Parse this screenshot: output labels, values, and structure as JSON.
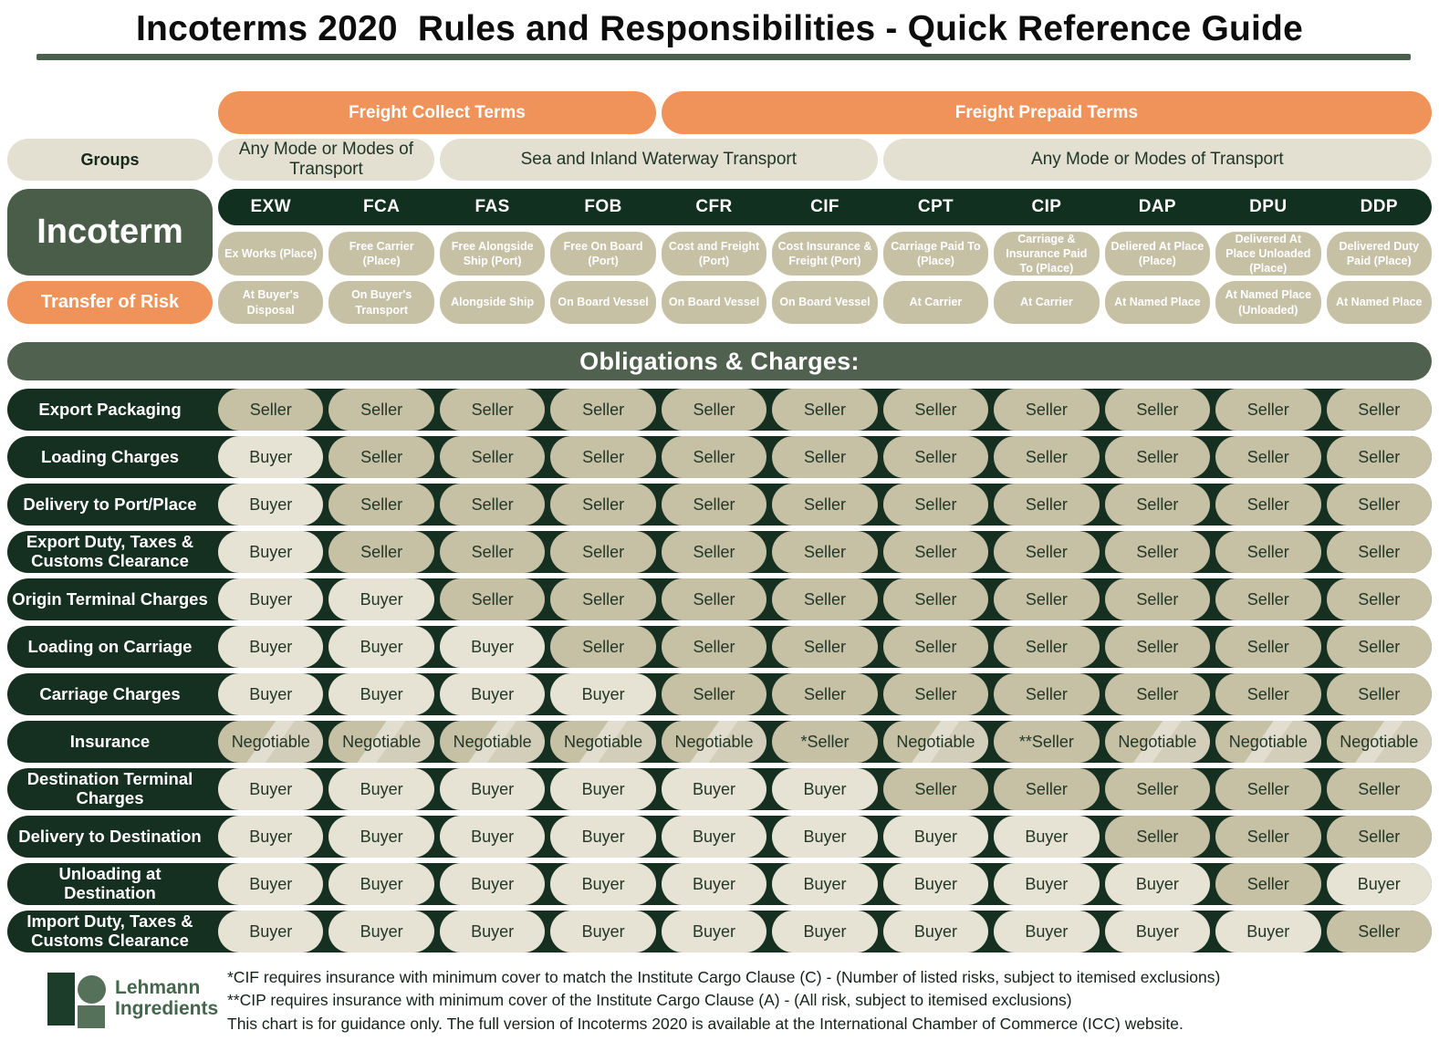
{
  "title": "Incoterms 2020  Rules and Responsibilities - Quick Reference Guide",
  "header": {
    "freight_collect": "Freight Collect Terms",
    "freight_prepaid": "Freight Prepaid Terms",
    "groups_label": "Groups",
    "group_spans": [
      "Any Mode or Modes of Transport",
      "Sea and Inland Waterway Transport",
      "Any Mode or Modes of Transport"
    ]
  },
  "incoterm_label": "Incoterm",
  "transfer_of_risk_label": "Transfer of Risk",
  "obligations_title": "Obligations & Charges:",
  "colors": {
    "accent_orange": "#f0935b",
    "dark_green": "#12301f",
    "medium_green": "#4a5d49",
    "seller_tan": "#c6c0a5",
    "buyer_cream": "#e6e3d5"
  },
  "columns": [
    {
      "code": "EXW",
      "name": "Ex Works (Place)",
      "risk": "At Buyer's Disposal"
    },
    {
      "code": "FCA",
      "name": "Free Carrier (Place)",
      "risk": "On Buyer's Transport"
    },
    {
      "code": "FAS",
      "name": "Free Alongside Ship (Port)",
      "risk": "Alongside Ship"
    },
    {
      "code": "FOB",
      "name": "Free On Board (Port)",
      "risk": "On Board Vessel"
    },
    {
      "code": "CFR",
      "name": "Cost and Freight (Port)",
      "risk": "On Board Vessel"
    },
    {
      "code": "CIF",
      "name": "Cost Insurance & Freight (Port)",
      "risk": "On Board Vessel"
    },
    {
      "code": "CPT",
      "name": "Carriage Paid To (Place)",
      "risk": "At Carrier"
    },
    {
      "code": "CIP",
      "name": "Carriage & Insurance Paid To (Place)",
      "risk": "At Carrier"
    },
    {
      "code": "DAP",
      "name": "Deliered At Place (Place)",
      "risk": "At Named Place"
    },
    {
      "code": "DPU",
      "name": "Delivered At Place Unloaded (Place)",
      "risk": "At Named Place (Unloaded)"
    },
    {
      "code": "DDP",
      "name": "Delivered Duty Paid (Place)",
      "risk": "At Named Place"
    }
  ],
  "rows": [
    {
      "label": "Export Packaging",
      "values": [
        "Seller",
        "Seller",
        "Seller",
        "Seller",
        "Seller",
        "Seller",
        "Seller",
        "Seller",
        "Seller",
        "Seller",
        "Seller"
      ]
    },
    {
      "label": "Loading Charges",
      "values": [
        "Buyer",
        "Seller",
        "Seller",
        "Seller",
        "Seller",
        "Seller",
        "Seller",
        "Seller",
        "Seller",
        "Seller",
        "Seller"
      ]
    },
    {
      "label": "Delivery to Port/Place",
      "values": [
        "Buyer",
        "Seller",
        "Seller",
        "Seller",
        "Seller",
        "Seller",
        "Seller",
        "Seller",
        "Seller",
        "Seller",
        "Seller"
      ]
    },
    {
      "label": "Export Duty, Taxes & Customs Clearance",
      "values": [
        "Buyer",
        "Seller",
        "Seller",
        "Seller",
        "Seller",
        "Seller",
        "Seller",
        "Seller",
        "Seller",
        "Seller",
        "Seller"
      ]
    },
    {
      "label": "Origin Terminal Charges",
      "values": [
        "Buyer",
        "Buyer",
        "Seller",
        "Seller",
        "Seller",
        "Seller",
        "Seller",
        "Seller",
        "Seller",
        "Seller",
        "Seller"
      ]
    },
    {
      "label": "Loading on Carriage",
      "values": [
        "Buyer",
        "Buyer",
        "Buyer",
        "Seller",
        "Seller",
        "Seller",
        "Seller",
        "Seller",
        "Seller",
        "Seller",
        "Seller"
      ]
    },
    {
      "label": "Carriage Charges",
      "values": [
        "Buyer",
        "Buyer",
        "Buyer",
        "Buyer",
        "Seller",
        "Seller",
        "Seller",
        "Seller",
        "Seller",
        "Seller",
        "Seller"
      ]
    },
    {
      "label": "Insurance",
      "values": [
        "Negotiable",
        "Negotiable",
        "Negotiable",
        "Negotiable",
        "Negotiable",
        "*Seller",
        "Negotiable",
        "**Seller",
        "Negotiable",
        "Negotiable",
        "Negotiable"
      ]
    },
    {
      "label": "Destination Terminal Charges",
      "values": [
        "Buyer",
        "Buyer",
        "Buyer",
        "Buyer",
        "Buyer",
        "Buyer",
        "Seller",
        "Seller",
        "Seller",
        "Seller",
        "Seller"
      ]
    },
    {
      "label": "Delivery to Destination",
      "values": [
        "Buyer",
        "Buyer",
        "Buyer",
        "Buyer",
        "Buyer",
        "Buyer",
        "Buyer",
        "Buyer",
        "Seller",
        "Seller",
        "Seller"
      ]
    },
    {
      "label": "Unloading at Destination",
      "values": [
        "Buyer",
        "Buyer",
        "Buyer",
        "Buyer",
        "Buyer",
        "Buyer",
        "Buyer",
        "Buyer",
        "Buyer",
        "Seller",
        "Buyer"
      ]
    },
    {
      "label": "Import Duty, Taxes & Customs Clearance",
      "values": [
        "Buyer",
        "Buyer",
        "Buyer",
        "Buyer",
        "Buyer",
        "Buyer",
        "Buyer",
        "Buyer",
        "Buyer",
        "Buyer",
        "Seller"
      ]
    }
  ],
  "footnotes": [
    "*CIF requires insurance with minimum cover to match the Institute Cargo Clause (C) - (Number of listed risks, subject to itemised exclusions)",
    "**CIP requires insurance with minimum cover of the Institute Cargo Clause (A) - (All risk, subject to itemised exclusions)",
    "This chart is for guidance only. The full version of Incoterms 2020 is available at the International Chamber of Commerce (ICC) website."
  ],
  "logo": {
    "line1": "Lehmann",
    "line2": "Ingredients"
  }
}
